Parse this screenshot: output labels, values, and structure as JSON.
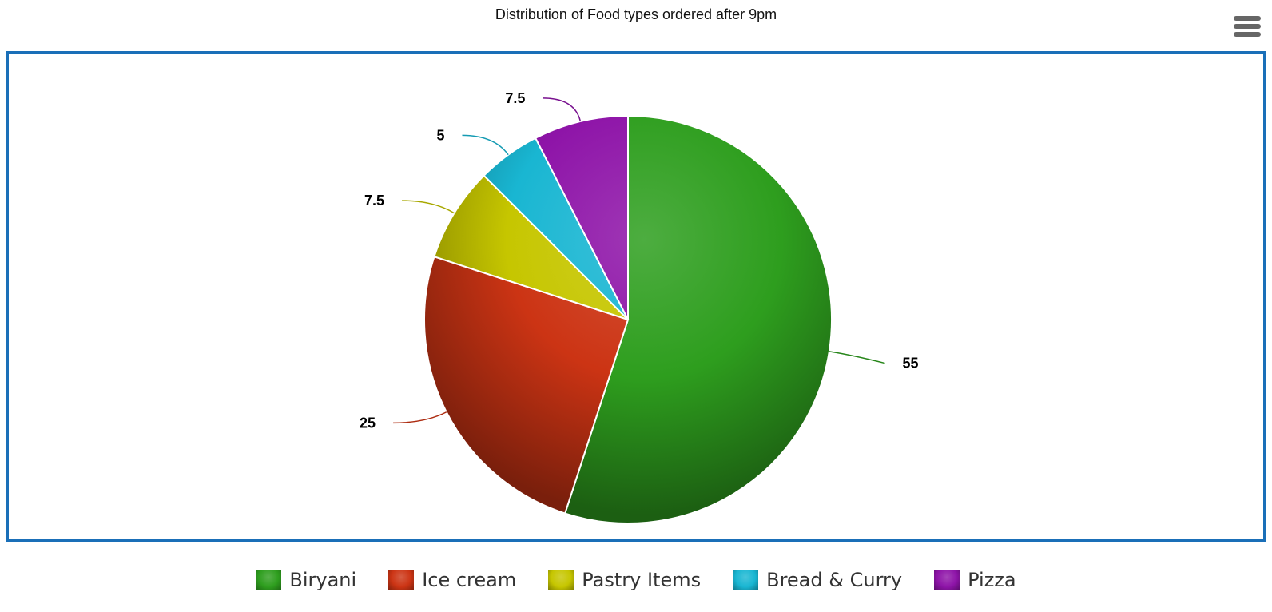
{
  "chart_data": {
    "type": "pie",
    "title": "Distribution of Food types ordered after 9pm",
    "categories": [
      "Biryani",
      "Ice cream",
      "Pastry Items",
      "Bread & Curry",
      "Pizza"
    ],
    "values": [
      55,
      25,
      7.5,
      5,
      7.5
    ],
    "colors": [
      "#2e9e1e",
      "#cc3414",
      "#c6c600",
      "#19b6d2",
      "#8e14a8"
    ],
    "data_labels": [
      "55",
      "25",
      "7.5",
      "5",
      "7.5"
    ],
    "legend_position": "bottom",
    "start_angle": 0,
    "direction": "clockwise"
  },
  "header": {
    "title": "Distribution of Food types ordered after 9pm",
    "menu_icon": "hamburger-menu-icon"
  },
  "legend": {
    "items": [
      {
        "label": "Biryani",
        "color": "#2e9e1e"
      },
      {
        "label": "Ice cream",
        "color": "#cc3414"
      },
      {
        "label": "Pastry Items",
        "color": "#c6c600"
      },
      {
        "label": "Bread & Curry",
        "color": "#19b6d2"
      },
      {
        "label": "Pizza",
        "color": "#8e14a8"
      }
    ]
  },
  "frame": {
    "border_color": "#1a6fb8"
  }
}
